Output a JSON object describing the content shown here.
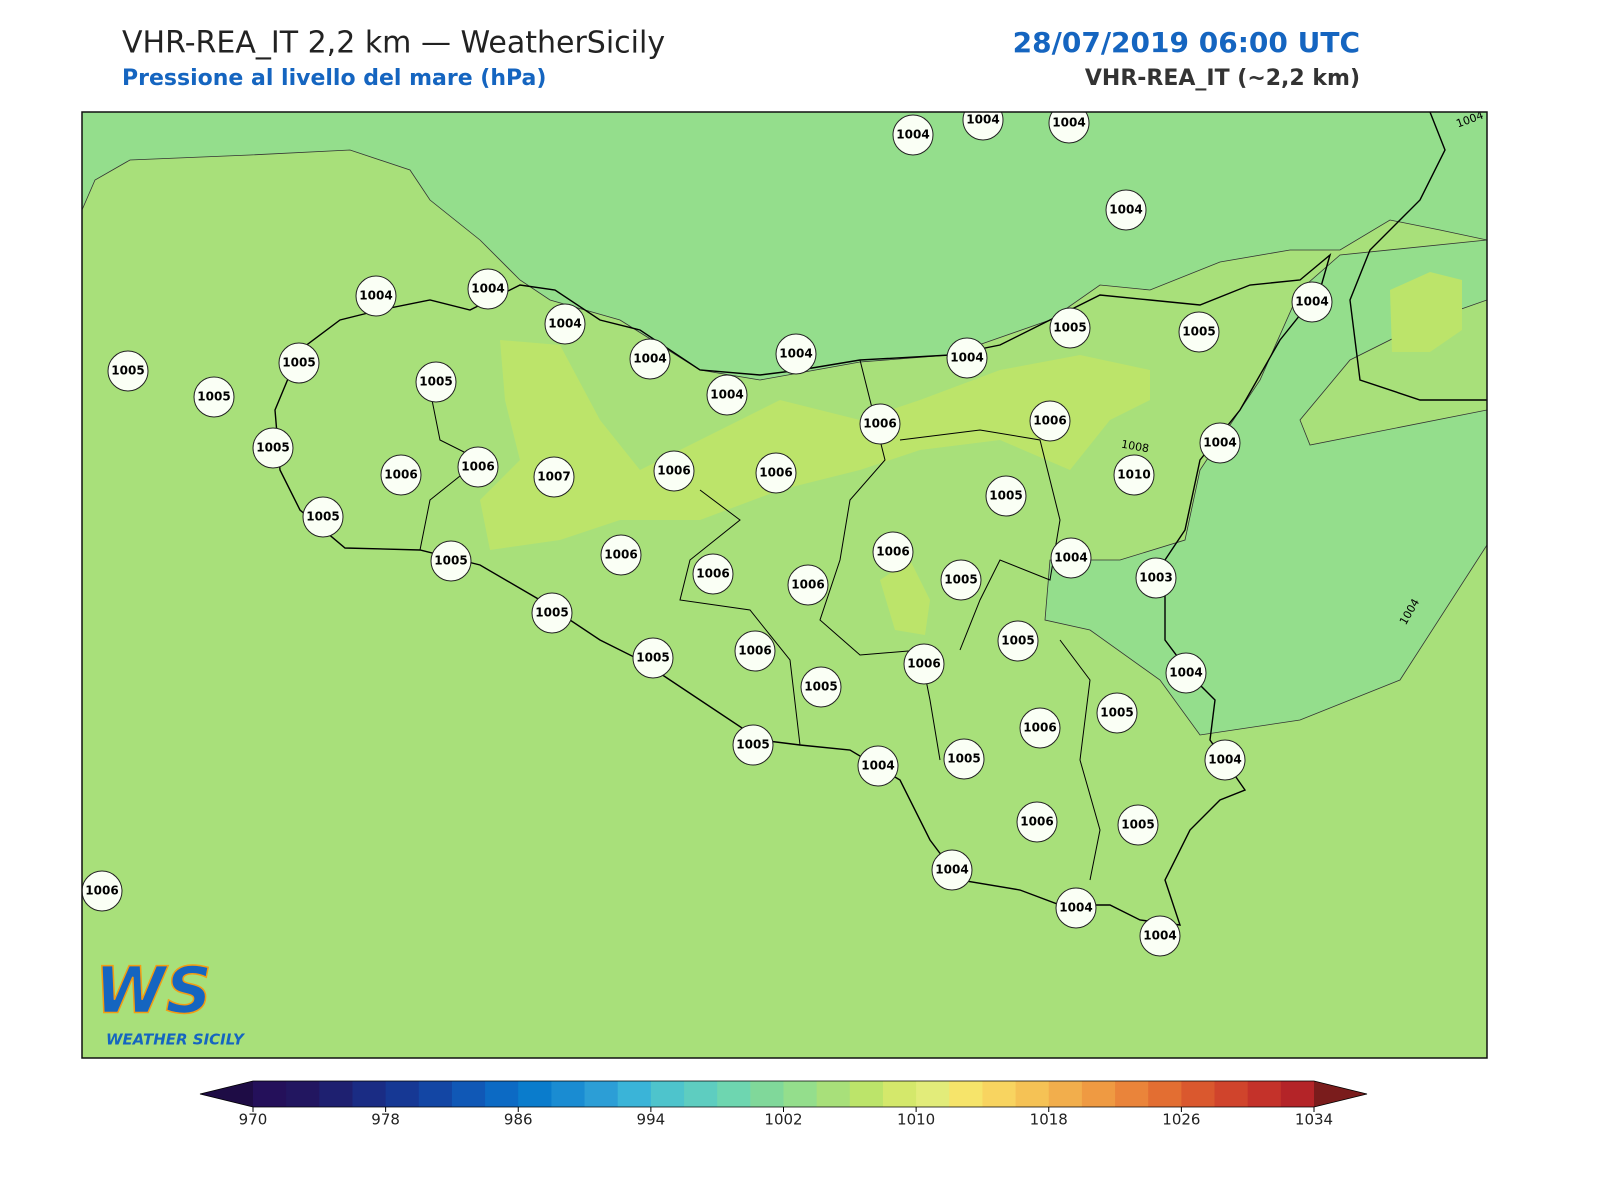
{
  "header": {
    "title": "VHR-REA_IT 2,2 km — WeatherSicily",
    "subtitle": "Pressione al livello del mare (hPa)",
    "date": "28/07/2019 06:00 UTC",
    "model": "VHR-REA_IT (~2,2 km)"
  },
  "map": {
    "stations": [
      1004,
      1004,
      1004,
      1004,
      1004,
      1004,
      1004,
      1004,
      1004,
      1004,
      1004,
      1005,
      1005,
      1004,
      1005,
      1005,
      1005,
      1005,
      1005,
      1006,
      1006,
      1007,
      1006,
      1006,
      1006,
      1006,
      1010,
      1004,
      1005,
      1005,
      1006,
      1006,
      1006,
      1006,
      1005,
      1005,
      1004,
      1003,
      1005,
      1005,
      1006,
      1005,
      1006,
      1005,
      1004,
      1005,
      1006,
      1005,
      1004,
      1005,
      1004,
      1006,
      1005,
      1004,
      1004,
      1004,
      1006
    ],
    "contour_labels": [
      "1004",
      "1008",
      "1004"
    ],
    "sea_color": "#94de8c",
    "land_color": "#a8e07a",
    "high_color": "#bce46a"
  },
  "logo": {
    "mark": "WS",
    "name": "WEATHER SICILY"
  },
  "colorbar": {
    "range": [
      970,
      1034
    ],
    "ticks": [
      970,
      978,
      986,
      994,
      1002,
      1010,
      1018,
      1026,
      1034
    ],
    "colors": [
      "#24105a",
      "#221660",
      "#1e2070",
      "#1a2c84",
      "#163894",
      "#1346a4",
      "#1058b6",
      "#0c6ac4",
      "#0a7ccc",
      "#1a8cd2",
      "#2c9ed6",
      "#3ab4d8",
      "#4ec4cc",
      "#5ecdc0",
      "#6ed6b0",
      "#80d89a",
      "#94de8c",
      "#a8e07a",
      "#bce46a",
      "#d4e86b",
      "#e2ec7a",
      "#f6e46a",
      "#f8d460",
      "#f5c255",
      "#f2ae4c",
      "#ef9a42",
      "#ea843a",
      "#e36e32",
      "#da582e",
      "#d0442c",
      "#c4322a",
      "#b42428"
    ],
    "under_color": "#1e0c45",
    "over_color": "#7a1c1c"
  }
}
